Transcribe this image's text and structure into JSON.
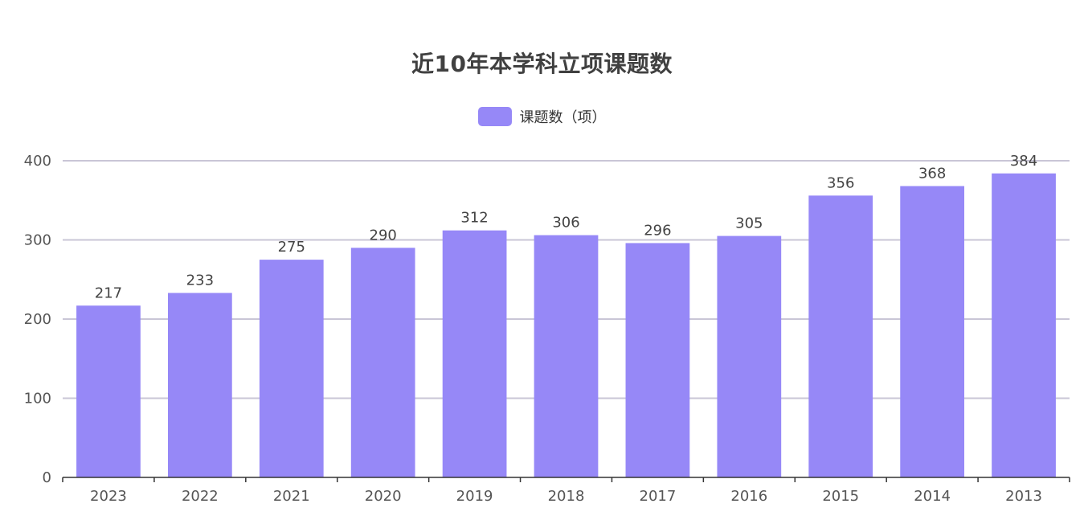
{
  "chart_data": {
    "type": "bar",
    "title": "近10年本学科立项课题数",
    "categories": [
      "2023",
      "2022",
      "2021",
      "2020",
      "2019",
      "2018",
      "2017",
      "2016",
      "2015",
      "2014",
      "2013"
    ],
    "series": [
      {
        "name": "课题数（项）",
        "values": [
          217,
          233,
          275,
          290,
          312,
          306,
          296,
          305,
          356,
          368,
          384
        ],
        "color": "#9688f7"
      }
    ],
    "yticks": [
      0,
      100,
      200,
      300,
      400
    ],
    "ylim": [
      0,
      400
    ],
    "grid": true,
    "legend_position": "top-center",
    "data_labels": true
  },
  "colors": {
    "bar": "#9688f7",
    "grid": "#c9c6d6",
    "axis": "#333333",
    "title": "#404040"
  }
}
